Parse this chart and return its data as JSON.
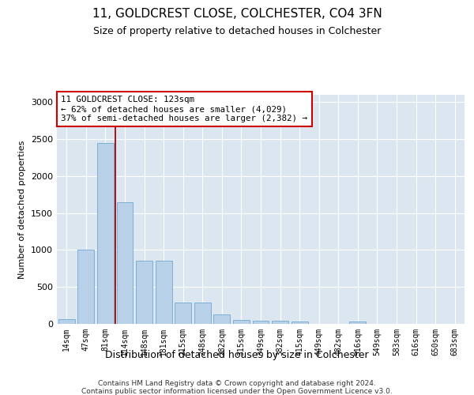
{
  "title": "11, GOLDCREST CLOSE, COLCHESTER, CO4 3FN",
  "subtitle": "Size of property relative to detached houses in Colchester",
  "xlabel": "Distribution of detached houses by size in Colchester",
  "ylabel": "Number of detached properties",
  "categories": [
    "14sqm",
    "47sqm",
    "81sqm",
    "114sqm",
    "148sqm",
    "181sqm",
    "215sqm",
    "248sqm",
    "282sqm",
    "315sqm",
    "349sqm",
    "382sqm",
    "415sqm",
    "449sqm",
    "482sqm",
    "516sqm",
    "549sqm",
    "583sqm",
    "616sqm",
    "650sqm",
    "683sqm"
  ],
  "values": [
    60,
    1000,
    2450,
    1650,
    850,
    850,
    290,
    290,
    130,
    55,
    45,
    45,
    35,
    0,
    0,
    30,
    0,
    0,
    0,
    0,
    0
  ],
  "bar_color": "#b8d0e8",
  "bar_edge_color": "#7aafd4",
  "vline_pos": 2.5,
  "vline_color": "#aa0000",
  "annotation_text": "11 GOLDCREST CLOSE: 123sqm\n← 62% of detached houses are smaller (4,029)\n37% of semi-detached houses are larger (2,382) →",
  "annotation_box_color": "#ffffff",
  "annotation_box_edge": "#cc0000",
  "ylim": [
    0,
    3100
  ],
  "yticks": [
    0,
    500,
    1000,
    1500,
    2000,
    2500,
    3000
  ],
  "background_color": "#dce6f0",
  "footer_line1": "Contains HM Land Registry data © Crown copyright and database right 2024.",
  "footer_line2": "Contains public sector information licensed under the Open Government Licence v3.0."
}
